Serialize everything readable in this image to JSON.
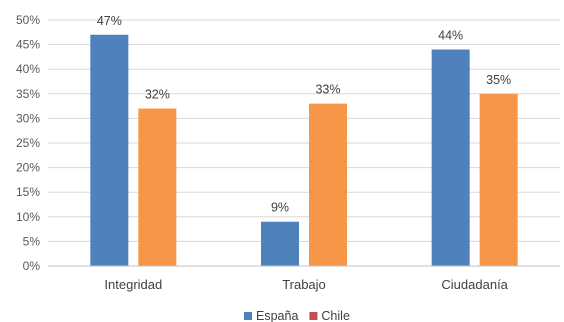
{
  "chart_data": {
    "type": "bar",
    "categories": [
      "Integridad",
      "Trabajo",
      "Ciudadanía"
    ],
    "series": [
      {
        "name": "España",
        "values": [
          47,
          9,
          44
        ],
        "labels": [
          "47%",
          "9%",
          "44%"
        ],
        "color": "#4f81bd"
      },
      {
        "name": "Chile",
        "values": [
          32,
          33,
          35
        ],
        "labels": [
          "32%",
          "33%",
          "35%"
        ],
        "color": "#f79646"
      }
    ],
    "legend": [
      {
        "name": "España",
        "color": "#4f81bd"
      },
      {
        "name": "Chile",
        "color": "#c0504d"
      }
    ],
    "y_ticks": [
      "0%",
      "5%",
      "10%",
      "15%",
      "20%",
      "25%",
      "30%",
      "35%",
      "40%",
      "45%",
      "50%"
    ],
    "ylim": [
      0,
      50
    ],
    "grid": true,
    "legend_position": "bottom-center"
  }
}
